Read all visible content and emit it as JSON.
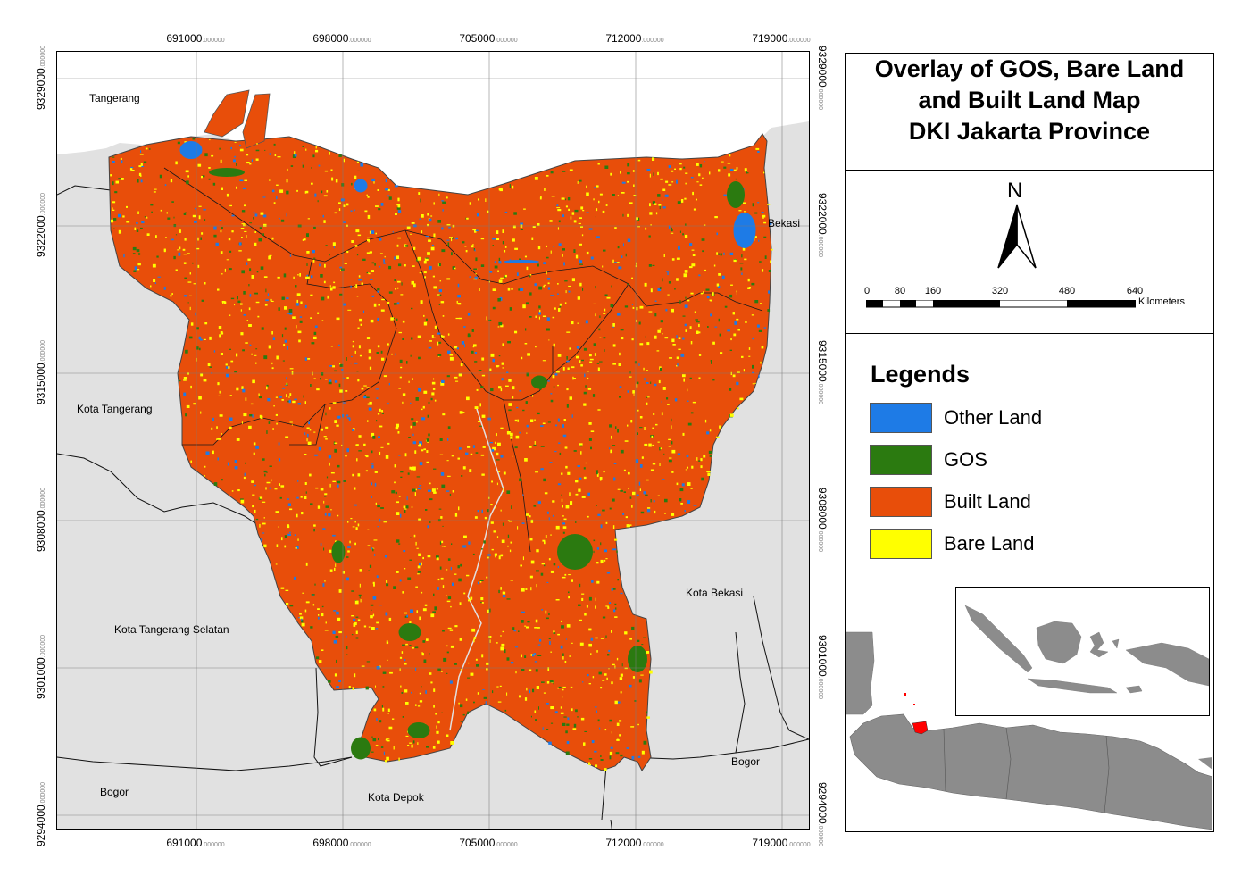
{
  "map": {
    "title_lines": [
      "Overlay of GOS, Bare Land",
      "and Built Land Map",
      "DKI Jakarta Province"
    ],
    "grid": {
      "x_ticks": [
        "691000",
        "698000",
        "705000",
        "712000",
        "719000"
      ],
      "y_ticks": [
        "9329000",
        "9322000",
        "9315000",
        "9308000",
        "9301000",
        "9294000"
      ],
      "decimal_suffix": ".000000"
    },
    "regions": [
      {
        "name": "Tangerang"
      },
      {
        "name": "Kota Tangerang"
      },
      {
        "name": "Kota Tangerang Selatan"
      },
      {
        "name": "Bogor"
      },
      {
        "name": "Kota Depok"
      },
      {
        "name": "Bogor"
      },
      {
        "name": "Kota Bekasi"
      },
      {
        "name": "Bekasi"
      }
    ],
    "colors": {
      "background": "#e1e1e1",
      "other_land": "#1e7be6",
      "gos": "#2b7a10",
      "built_land": "#e84e0a",
      "bare_land": "#ffff00"
    },
    "north_arrow": {
      "label": "N"
    },
    "scale_bar": {
      "labels": [
        "0",
        "80",
        "160",
        "320",
        "480",
        "640"
      ],
      "unit": "Kilometers"
    },
    "legend": {
      "title": "Legends",
      "items": [
        {
          "label": "Other Land",
          "color": "#1e7be6"
        },
        {
          "label": "GOS",
          "color": "#2b7a10"
        },
        {
          "label": "Built Land",
          "color": "#e84e0a"
        },
        {
          "label": "Bare Land",
          "color": "#ffff00"
        }
      ]
    },
    "inset": {
      "highlight_color": "#ff0000",
      "land_color": "#8c8c8c"
    }
  }
}
